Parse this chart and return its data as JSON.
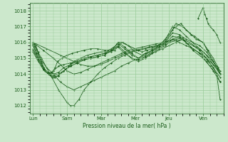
{
  "background_color": "#cce8cc",
  "grid_color": "#99cc99",
  "line_color": "#1a5c1a",
  "marker_color": "#1a5c1a",
  "xlabel": "Pression niveau de la mer( hPa )",
  "ylim": [
    1011.5,
    1018.5
  ],
  "yticks": [
    1012,
    1013,
    1014,
    1015,
    1016,
    1017,
    1018
  ],
  "xtick_labels": [
    "Lun",
    "Sam",
    "Mar",
    "Mer",
    "Jeu",
    "Ven"
  ],
  "xtick_positions": [
    0,
    1,
    2,
    3,
    4,
    5
  ],
  "xlim": [
    -0.1,
    5.6
  ],
  "series": [
    [
      0.0,
      1016.0,
      0.08,
      1015.8,
      0.15,
      1015.4,
      0.25,
      1014.8,
      0.35,
      1014.2,
      0.45,
      1014.0,
      0.55,
      1014.1,
      0.65,
      1014.4,
      0.72,
      1014.8,
      0.85,
      1015.0,
      1.0,
      1015.2,
      1.15,
      1015.3,
      1.3,
      1015.4,
      1.5,
      1015.5,
      1.7,
      1015.6,
      1.9,
      1015.6,
      2.1,
      1015.5,
      2.2,
      1015.5,
      2.35,
      1015.6,
      2.5,
      1016.0,
      2.65,
      1016.0,
      2.8,
      1015.8,
      3.0,
      1015.6,
      3.2,
      1015.4,
      3.35,
      1015.5,
      3.5,
      1015.6,
      3.65,
      1015.8,
      3.8,
      1016.0,
      4.0,
      1016.5,
      4.1,
      1016.8,
      4.2,
      1017.0,
      4.35,
      1017.2,
      4.5,
      1016.8,
      4.65,
      1016.5,
      4.75,
      1016.4,
      4.85,
      1016.2,
      5.0,
      1016.0,
      5.1,
      1015.6,
      5.2,
      1015.2,
      5.3,
      1014.8,
      5.4,
      1014.4,
      5.5,
      1014.0
    ],
    [
      0.0,
      1016.0,
      0.1,
      1015.6,
      0.2,
      1015.0,
      0.3,
      1014.4,
      0.45,
      1014.0,
      0.55,
      1013.8,
      0.65,
      1013.8,
      0.75,
      1013.9,
      0.9,
      1014.2,
      1.05,
      1014.5,
      1.2,
      1014.8,
      1.4,
      1015.0,
      1.6,
      1015.2,
      1.8,
      1015.3,
      2.0,
      1015.4,
      2.2,
      1015.4,
      2.4,
      1015.5,
      2.6,
      1016.0,
      2.8,
      1015.8,
      3.0,
      1015.4,
      3.2,
      1015.2,
      3.4,
      1015.4,
      3.6,
      1015.6,
      3.8,
      1015.8,
      4.0,
      1016.4,
      4.2,
      1017.2,
      4.4,
      1017.0,
      4.6,
      1016.6,
      4.8,
      1016.2,
      5.0,
      1016.0,
      5.15,
      1015.5,
      5.3,
      1015.0,
      5.45,
      1014.4,
      5.5,
      1014.0
    ],
    [
      0.0,
      1015.8,
      0.1,
      1015.3,
      0.2,
      1014.8,
      0.3,
      1014.4,
      0.45,
      1014.0,
      0.6,
      1013.8,
      0.75,
      1013.9,
      0.9,
      1014.2,
      1.1,
      1014.5,
      1.3,
      1014.7,
      1.5,
      1014.9,
      1.7,
      1015.1,
      1.9,
      1015.2,
      2.1,
      1015.3,
      2.3,
      1015.4,
      2.5,
      1016.0,
      2.7,
      1015.7,
      2.9,
      1015.3,
      3.1,
      1015.0,
      3.3,
      1015.3,
      3.5,
      1015.5,
      3.7,
      1015.8,
      3.9,
      1016.2,
      4.1,
      1017.0,
      4.3,
      1016.8,
      4.5,
      1016.4,
      4.7,
      1016.0,
      4.9,
      1015.8,
      5.1,
      1015.4,
      5.3,
      1014.8,
      5.5,
      1014.2
    ],
    [
      0.0,
      1015.6,
      0.15,
      1015.0,
      0.3,
      1014.4,
      0.45,
      1014.1,
      0.6,
      1014.0,
      0.75,
      1014.1,
      0.9,
      1014.4,
      1.1,
      1014.6,
      1.3,
      1014.8,
      1.5,
      1015.0,
      1.7,
      1015.1,
      1.9,
      1015.2,
      2.1,
      1015.3,
      2.3,
      1015.6,
      2.5,
      1015.9,
      2.7,
      1015.6,
      2.9,
      1015.2,
      3.1,
      1015.0,
      3.3,
      1015.2,
      3.5,
      1015.5,
      3.7,
      1015.8,
      3.9,
      1016.0,
      4.1,
      1016.6,
      4.3,
      1016.5,
      4.5,
      1016.2,
      4.7,
      1016.0,
      4.9,
      1015.6,
      5.1,
      1015.2,
      5.3,
      1014.6,
      5.5,
      1014.0
    ],
    [
      0.0,
      1015.5,
      0.15,
      1014.9,
      0.3,
      1014.3,
      0.45,
      1014.0,
      0.6,
      1013.9,
      0.75,
      1014.0,
      0.9,
      1014.2,
      1.1,
      1014.5,
      1.3,
      1014.7,
      1.5,
      1014.9,
      1.7,
      1015.0,
      1.9,
      1015.1,
      2.1,
      1015.2,
      2.3,
      1015.5,
      2.5,
      1015.8,
      2.7,
      1015.4,
      2.9,
      1015.0,
      3.1,
      1014.9,
      3.3,
      1015.1,
      3.5,
      1015.4,
      3.7,
      1015.7,
      3.9,
      1015.9,
      4.1,
      1016.4,
      4.3,
      1016.3,
      4.5,
      1016.0,
      4.7,
      1015.8,
      4.9,
      1015.5,
      5.1,
      1015.0,
      5.3,
      1014.4,
      5.5,
      1013.8
    ],
    [
      0.0,
      1015.4,
      0.15,
      1014.8,
      0.3,
      1014.3,
      0.45,
      1014.0,
      0.6,
      1014.2,
      0.75,
      1014.5,
      0.9,
      1014.6,
      1.1,
      1014.7,
      1.3,
      1014.8,
      1.5,
      1014.9,
      1.7,
      1015.0,
      1.9,
      1015.1,
      2.1,
      1015.2,
      2.3,
      1015.5,
      2.5,
      1015.7,
      2.7,
      1015.3,
      2.9,
      1015.0,
      3.1,
      1014.8,
      3.3,
      1015.0,
      3.5,
      1015.3,
      3.7,
      1015.6,
      3.9,
      1015.8,
      4.1,
      1016.2,
      4.3,
      1016.0,
      4.5,
      1015.8,
      4.7,
      1015.6,
      4.9,
      1015.3,
      5.1,
      1014.8,
      5.3,
      1014.2,
      5.5,
      1013.5
    ],
    [
      0.0,
      1015.8,
      0.2,
      1015.0,
      0.4,
      1014.4,
      0.6,
      1014.0,
      0.8,
      1013.5,
      1.0,
      1013.2,
      1.2,
      1013.0,
      1.4,
      1013.2,
      1.6,
      1013.4,
      1.8,
      1013.6,
      2.0,
      1013.8,
      2.2,
      1014.0,
      2.4,
      1014.2,
      2.6,
      1014.5,
      2.8,
      1014.7,
      3.0,
      1014.9,
      3.2,
      1015.0,
      3.4,
      1015.2,
      3.6,
      1015.4,
      3.8,
      1015.6,
      4.0,
      1015.8,
      4.2,
      1016.0,
      4.4,
      1016.2,
      4.6,
      1016.0,
      4.8,
      1015.7,
      5.0,
      1015.4,
      5.2,
      1015.0,
      5.4,
      1014.5,
      5.5,
      1014.0
    ],
    [
      0.0,
      1015.9,
      0.25,
      1015.0,
      0.5,
      1014.0,
      0.75,
      1013.0,
      1.0,
      1012.2,
      1.1,
      1012.0,
      1.2,
      1012.0,
      1.35,
      1012.4,
      1.5,
      1013.0,
      1.7,
      1013.5,
      1.9,
      1014.0,
      2.1,
      1014.4,
      2.3,
      1014.7,
      2.5,
      1015.0,
      2.7,
      1015.2,
      2.9,
      1015.4,
      3.1,
      1015.5,
      3.3,
      1015.6,
      3.5,
      1015.7,
      3.7,
      1015.8,
      3.9,
      1016.0,
      4.1,
      1016.2,
      4.3,
      1016.4,
      4.5,
      1016.0,
      4.7,
      1015.6,
      5.0,
      1015.2,
      5.15,
      1014.8,
      5.3,
      1014.4,
      5.4,
      1014.0,
      5.5,
      1012.4
    ],
    [
      0.0,
      1016.0,
      0.3,
      1015.5,
      0.6,
      1015.0,
      0.8,
      1014.6,
      1.0,
      1014.2,
      1.2,
      1014.0,
      1.4,
      1014.1,
      1.6,
      1014.3,
      1.8,
      1014.5,
      2.0,
      1014.7,
      2.2,
      1014.9,
      2.4,
      1015.1,
      2.6,
      1015.3,
      2.8,
      1015.5,
      3.0,
      1015.6,
      3.2,
      1015.7,
      3.4,
      1015.8,
      3.6,
      1015.9,
      3.8,
      1016.0,
      4.0,
      1016.1,
      4.2,
      1016.2,
      4.4,
      1016.3,
      4.5,
      1016.0,
      4.7,
      1015.6,
      5.0,
      1015.2,
      5.2,
      1014.8,
      5.4,
      1014.4,
      5.5,
      1014.0
    ],
    [
      0.0,
      1016.0,
      0.4,
      1015.6,
      0.8,
      1015.2,
      1.0,
      1015.0,
      1.2,
      1014.8,
      1.4,
      1014.6,
      1.6,
      1014.5,
      1.8,
      1014.5,
      2.0,
      1014.6,
      2.2,
      1014.8,
      2.4,
      1015.0,
      2.6,
      1015.2,
      2.8,
      1015.4,
      3.0,
      1015.5,
      3.2,
      1015.6,
      3.4,
      1015.7,
      3.6,
      1015.8,
      3.8,
      1015.9,
      4.0,
      1016.0,
      4.2,
      1016.1,
      4.4,
      1016.2,
      4.5,
      1016.0,
      4.7,
      1015.5,
      5.0,
      1015.0,
      5.2,
      1014.5,
      5.4,
      1014.0,
      5.5,
      1013.5
    ]
  ],
  "spike_series": [
    [
      4.85,
      1017.5,
      5.0,
      1018.2,
      5.05,
      1017.8,
      5.1,
      1017.5,
      5.15,
      1017.2,
      5.2,
      1017.0,
      5.3,
      1016.8,
      5.4,
      1016.5,
      5.5,
      1016.0
    ]
  ]
}
